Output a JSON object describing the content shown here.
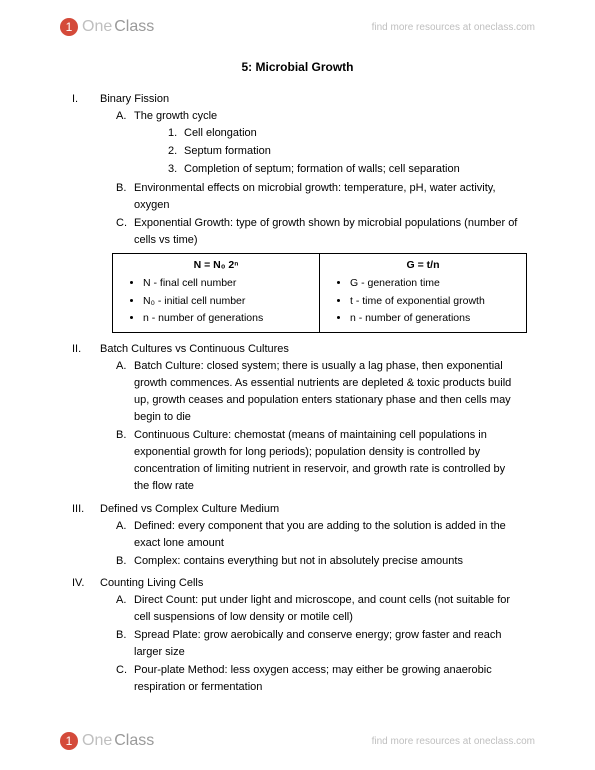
{
  "brand": {
    "iconGlyph": "1",
    "textLight": "One",
    "textDark": "Class"
  },
  "findMore": "find more resources at oneclass.com",
  "title": "5: Microbial Growth",
  "sections": [
    {
      "roman": "I.",
      "heading": "Binary Fission",
      "items": [
        {
          "label": "A.",
          "text": "The growth cycle",
          "sub": [
            {
              "label": "1.",
              "text": "Cell elongation"
            },
            {
              "label": "2.",
              "text": "Septum formation"
            },
            {
              "label": "3.",
              "text": "Completion of septum; formation of walls; cell separation"
            }
          ]
        },
        {
          "label": "B.",
          "text": "Environmental effects on microbial growth: temperature, pH, water activity, oxygen"
        },
        {
          "label": "C.",
          "text": "Exponential Growth: type of growth shown by microbial populations (number of cells vs time)"
        }
      ]
    },
    {
      "roman": "II.",
      "heading": "Batch Cultures vs Continuous Cultures",
      "items": [
        {
          "label": "A.",
          "text": "Batch Culture: closed system; there is usually a lag phase, then exponential growth commences. As essential nutrients are depleted & toxic products build up, growth ceases and population enters stationary phase and then cells may begin to die"
        },
        {
          "label": "B.",
          "text": "Continuous Culture: chemostat (means of maintaining cell populations in exponential growth for long periods); population density is controlled by concentration of limiting nutrient in reservoir, and growth rate is controlled by the flow rate"
        }
      ]
    },
    {
      "roman": "III.",
      "heading": "Defined vs Complex Culture Medium",
      "items": [
        {
          "label": "A.",
          "text": "Defined: every component that you are adding to the solution is added in the exact lone amount"
        },
        {
          "label": "B.",
          "text": "Complex: contains everything but not in absolutely precise amounts"
        }
      ]
    },
    {
      "roman": "IV.",
      "heading": "Counting Living Cells",
      "items": [
        {
          "label": "A.",
          "text": "Direct Count: put under light and microscope, and count cells (not suitable for cell suspensions of low density or motile cell)"
        },
        {
          "label": "B.",
          "text": "Spread Plate: grow aerobically and conserve energy; grow faster and reach larger size"
        },
        {
          "label": "C.",
          "text": "Pour-plate Method: less oxygen access; may either be growing anaerobic respiration or fermentation"
        }
      ]
    }
  ],
  "formulas": {
    "left": {
      "header": "N = N₀ 2ⁿ",
      "bullets": [
        "N - final cell number",
        "N₀ - initial cell number",
        "n - number of generations"
      ]
    },
    "right": {
      "header": "G = t/n",
      "bullets": [
        "G - generation time",
        "t - time of exponential growth",
        "n - number of generations"
      ]
    }
  }
}
